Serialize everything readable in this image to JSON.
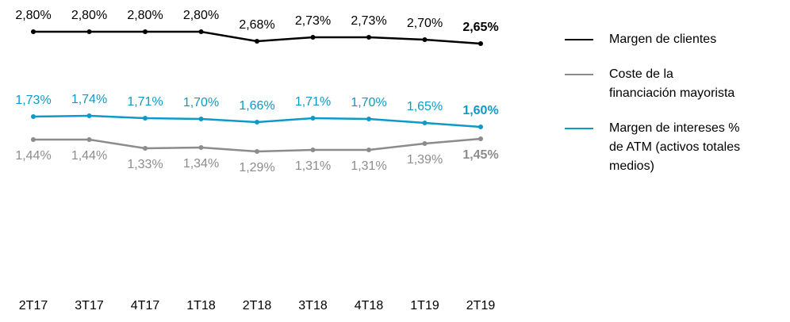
{
  "chart_data": {
    "type": "line",
    "categories": [
      "2T17",
      "3T17",
      "4T17",
      "1T18",
      "2T18",
      "3T18",
      "4T18",
      "1T19",
      "2T19"
    ],
    "ylim": [
      0,
      3
    ],
    "series": [
      {
        "name": "Margen de clientes",
        "color": "#000000",
        "values": [
          2.8,
          2.8,
          2.8,
          2.8,
          2.68,
          2.73,
          2.73,
          2.7,
          2.65
        ],
        "value_labels": [
          "2,80%",
          "2,80%",
          "2,80%",
          "2,80%",
          "2,68%",
          "2,73%",
          "2,73%",
          "2,70%",
          "2,65%"
        ]
      },
      {
        "name": "Coste de la\nfinanciación mayorista",
        "color": "#8c8c8c",
        "values": [
          1.44,
          1.44,
          1.33,
          1.34,
          1.29,
          1.31,
          1.31,
          1.39,
          1.45
        ],
        "value_labels": [
          "1,44%",
          "1,44%",
          "1,33%",
          "1,34%",
          "1,29%",
          "1,31%",
          "1,31%",
          "1,39%",
          "1,45%"
        ]
      },
      {
        "name": "Margen de intereses %\nde ATM (activos totales\nmedios)",
        "color": "#0e9ac8",
        "values": [
          1.73,
          1.74,
          1.71,
          1.7,
          1.66,
          1.71,
          1.7,
          1.65,
          1.6
        ],
        "value_labels": [
          "1,73%",
          "1,74%",
          "1,71%",
          "1,70%",
          "1,66%",
          "1,71%",
          "1,70%",
          "1,65%",
          "1,60%"
        ]
      }
    ]
  }
}
